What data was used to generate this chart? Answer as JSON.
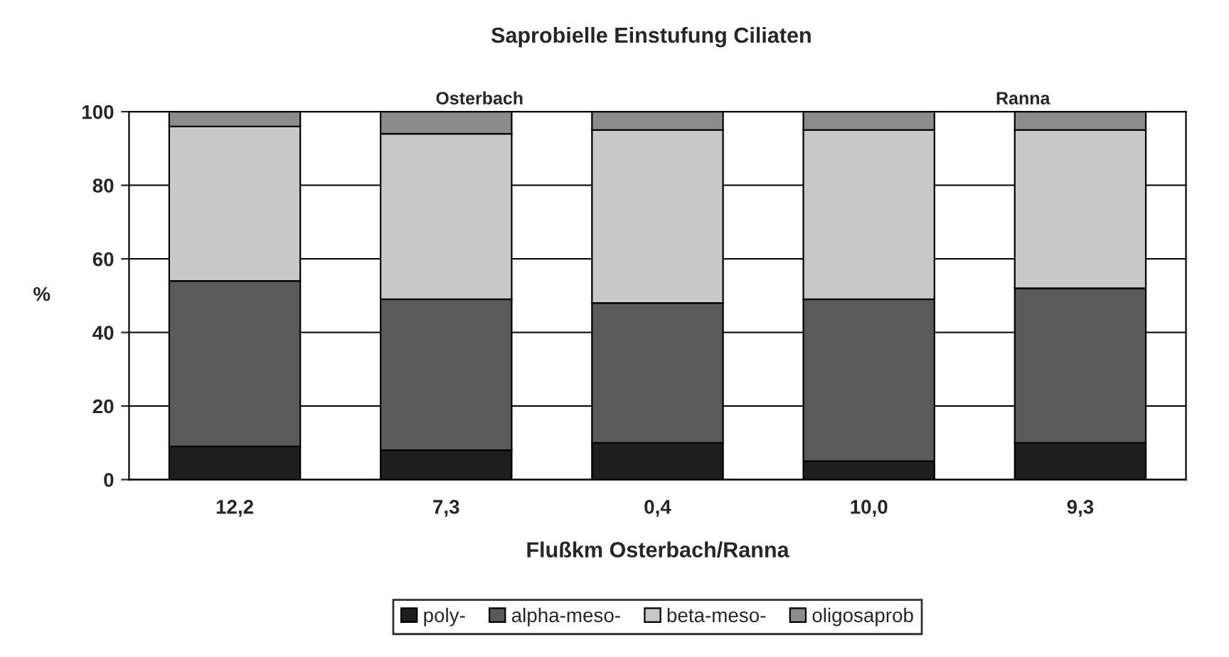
{
  "chart_data": {
    "type": "bar",
    "stacked": true,
    "title": "Saprobielle Einstufung Ciliaten",
    "xlabel": "Flußkm Osterbach/Ranna",
    "ylabel": "%",
    "categories": [
      "12,2",
      "7,3",
      "0,4",
      "10,0",
      "9,3"
    ],
    "series": [
      {
        "name": "poly-",
        "color": "#1e1e1e",
        "values": [
          9,
          8,
          10,
          5,
          10
        ]
      },
      {
        "name": "alpha-meso-",
        "color": "#5a5a5a",
        "values": [
          45,
          41,
          38,
          44,
          42
        ]
      },
      {
        "name": "beta-meso-",
        "color": "#c8c8c8",
        "values": [
          42,
          45,
          47,
          46,
          43
        ]
      },
      {
        "name": "oligosaprob",
        "color": "#8c8c8c",
        "values": [
          4,
          6,
          5,
          5,
          5
        ]
      }
    ],
    "annotations": [
      "Osterbach",
      "Ranna"
    ],
    "ylim": [
      0,
      100
    ],
    "yticks": [
      0,
      20,
      40,
      60,
      80,
      100
    ],
    "grid": "y",
    "legend": "bottom"
  }
}
